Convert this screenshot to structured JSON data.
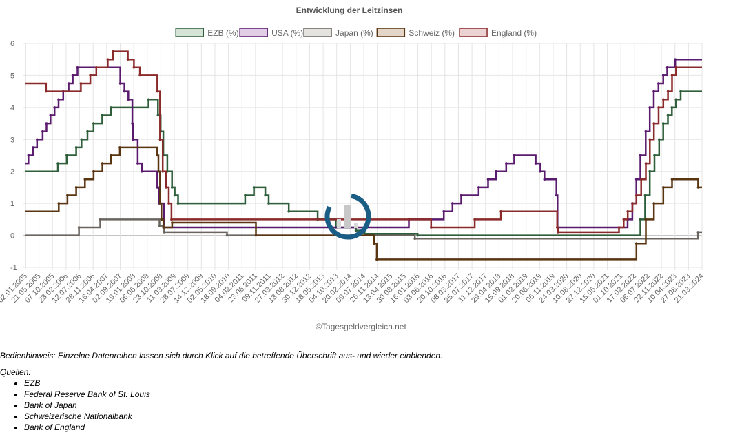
{
  "chart_data": {
    "type": "line",
    "step": true,
    "title": "Entwicklung der Leitzinsen",
    "credit": "©Tagesgeldvergleich.net",
    "ylim": [
      -1,
      6
    ],
    "y_ticks": [
      "-1",
      "0",
      "1",
      "2",
      "3",
      "4",
      "5",
      "6"
    ],
    "x_range": [
      "2005-01-02",
      "2024-04-30"
    ],
    "grid": true,
    "legend_position": "top-center",
    "x_tick_labels": [
      "02.01.2005",
      "21.05.2005",
      "07.10.2005",
      "23.02.2006",
      "12.07.2006",
      "28.11.2006",
      "16.04.2007",
      "02.09.2007",
      "19.01.2008",
      "06.06.2008",
      "23.10.2008",
      "11.03.2009",
      "28.07.2009",
      "14.12.2009",
      "02.05.2010",
      "18.09.2010",
      "04.02.2011",
      "23.06.2011",
      "09.11.2011",
      "27.03.2012",
      "13.08.2012",
      "30.12.2012",
      "18.05.2013",
      "04.10.2013",
      "20.02.2014",
      "09.07.2014",
      "25.11.2014",
      "13.04.2015",
      "30.08.2015",
      "16.01.2016",
      "03.06.2016",
      "20.10.2016",
      "08.03.2017",
      "25.07.2017",
      "11.12.2017",
      "29.04.2018",
      "15.09.2018",
      "01.02.2019",
      "20.06.2019",
      "06.11.2019",
      "24.03.2020",
      "10.08.2020",
      "27.12.2020",
      "15.05.2021",
      "01.10.2021",
      "17.02.2022",
      "06.07.2022",
      "22.11.2022",
      "10.04.2023",
      "27.08.2023",
      "21.03.2024"
    ],
    "series": [
      {
        "name": "EZB (%)",
        "color": "#2e5e3a",
        "fill": "#d4e3d6",
        "points": [
          [
            "2005-01-02",
            2.0
          ],
          [
            "2005-12-06",
            2.25
          ],
          [
            "2006-03-08",
            2.5
          ],
          [
            "2006-06-15",
            2.75
          ],
          [
            "2006-08-09",
            3.0
          ],
          [
            "2006-10-11",
            3.25
          ],
          [
            "2006-12-13",
            3.5
          ],
          [
            "2007-03-14",
            3.75
          ],
          [
            "2007-06-13",
            4.0
          ],
          [
            "2008-07-09",
            4.25
          ],
          [
            "2008-10-15",
            3.75
          ],
          [
            "2008-11-12",
            3.25
          ],
          [
            "2008-12-10",
            2.5
          ],
          [
            "2009-01-21",
            2.0
          ],
          [
            "2009-03-11",
            1.5
          ],
          [
            "2009-04-08",
            1.25
          ],
          [
            "2009-05-13",
            1.0
          ],
          [
            "2011-04-13",
            1.25
          ],
          [
            "2011-07-13",
            1.5
          ],
          [
            "2011-11-09",
            1.25
          ],
          [
            "2011-12-14",
            1.0
          ],
          [
            "2012-07-11",
            0.75
          ],
          [
            "2013-05-08",
            0.5
          ],
          [
            "2013-11-13",
            0.25
          ],
          [
            "2014-06-11",
            0.15
          ],
          [
            "2014-09-10",
            0.05
          ],
          [
            "2016-03-16",
            0.0
          ],
          [
            "2022-07-27",
            0.5
          ],
          [
            "2022-09-14",
            1.25
          ],
          [
            "2022-11-02",
            2.0
          ],
          [
            "2022-12-21",
            2.5
          ],
          [
            "2023-02-08",
            3.0
          ],
          [
            "2023-03-22",
            3.5
          ],
          [
            "2023-05-10",
            3.75
          ],
          [
            "2023-06-21",
            4.0
          ],
          [
            "2023-08-02",
            4.25
          ],
          [
            "2023-09-20",
            4.5
          ],
          [
            "2024-04-30",
            4.5
          ]
        ]
      },
      {
        "name": "USA (%)",
        "color": "#5a1a6e",
        "fill": "#e1cde6",
        "points": [
          [
            "2005-01-02",
            2.25
          ],
          [
            "2005-02-02",
            2.5
          ],
          [
            "2005-03-22",
            2.75
          ],
          [
            "2005-05-03",
            3.0
          ],
          [
            "2005-06-30",
            3.25
          ],
          [
            "2005-08-09",
            3.5
          ],
          [
            "2005-09-20",
            3.75
          ],
          [
            "2005-11-01",
            4.0
          ],
          [
            "2005-12-13",
            4.25
          ],
          [
            "2006-01-31",
            4.5
          ],
          [
            "2006-03-28",
            4.75
          ],
          [
            "2006-05-10",
            5.0
          ],
          [
            "2006-06-29",
            5.25
          ],
          [
            "2007-09-18",
            4.75
          ],
          [
            "2007-10-31",
            4.5
          ],
          [
            "2007-12-11",
            4.25
          ],
          [
            "2008-01-22",
            3.5
          ],
          [
            "2008-01-30",
            3.0
          ],
          [
            "2008-03-18",
            2.25
          ],
          [
            "2008-04-30",
            2.0
          ],
          [
            "2008-10-08",
            1.5
          ],
          [
            "2008-10-29",
            1.0
          ],
          [
            "2008-12-16",
            0.25
          ],
          [
            "2015-12-16",
            0.5
          ],
          [
            "2016-12-14",
            0.75
          ],
          [
            "2017-03-15",
            1.0
          ],
          [
            "2017-06-14",
            1.25
          ],
          [
            "2017-12-13",
            1.5
          ],
          [
            "2018-03-21",
            1.75
          ],
          [
            "2018-06-13",
            2.0
          ],
          [
            "2018-09-26",
            2.25
          ],
          [
            "2018-12-19",
            2.5
          ],
          [
            "2019-07-31",
            2.25
          ],
          [
            "2019-09-18",
            2.0
          ],
          [
            "2019-10-30",
            1.75
          ],
          [
            "2020-03-03",
            1.25
          ],
          [
            "2020-03-15",
            0.25
          ],
          [
            "2022-03-16",
            0.5
          ],
          [
            "2022-05-04",
            1.0
          ],
          [
            "2022-06-15",
            1.75
          ],
          [
            "2022-07-27",
            2.5
          ],
          [
            "2022-09-21",
            3.25
          ],
          [
            "2022-11-02",
            4.0
          ],
          [
            "2022-12-14",
            4.5
          ],
          [
            "2023-02-01",
            4.75
          ],
          [
            "2023-03-22",
            5.0
          ],
          [
            "2023-05-03",
            5.25
          ],
          [
            "2023-07-26",
            5.5
          ],
          [
            "2024-04-30",
            5.5
          ]
        ]
      },
      {
        "name": "Japan (%)",
        "color": "#6b6560",
        "fill": "#e5e3e0",
        "points": [
          [
            "2005-01-02",
            0.0
          ],
          [
            "2006-07-14",
            0.25
          ],
          [
            "2007-02-21",
            0.5
          ],
          [
            "2008-10-31",
            0.3
          ],
          [
            "2008-12-19",
            0.1
          ],
          [
            "2010-10-05",
            0.0
          ],
          [
            "2016-02-16",
            -0.1
          ],
          [
            "2024-03-19",
            0.1
          ],
          [
            "2024-04-30",
            0.1
          ]
        ]
      },
      {
        "name": "Schweiz (%)",
        "color": "#5a3512",
        "fill": "#e3d6c8",
        "points": [
          [
            "2005-01-02",
            0.75
          ],
          [
            "2005-12-15",
            1.0
          ],
          [
            "2006-03-16",
            1.25
          ],
          [
            "2006-06-15",
            1.5
          ],
          [
            "2006-09-14",
            1.75
          ],
          [
            "2006-12-14",
            2.0
          ],
          [
            "2007-03-15",
            2.25
          ],
          [
            "2007-06-14",
            2.5
          ],
          [
            "2007-09-13",
            2.75
          ],
          [
            "2008-10-08",
            2.5
          ],
          [
            "2008-10-20",
            2.0
          ],
          [
            "2008-11-06",
            1.0
          ],
          [
            "2008-11-20",
            0.5
          ],
          [
            "2008-12-11",
            0.25
          ],
          [
            "2009-03-12",
            0.4
          ],
          [
            "2011-08-03",
            0.0
          ],
          [
            "2014-12-18",
            -0.25
          ],
          [
            "2015-01-15",
            -0.75
          ],
          [
            "2022-06-16",
            -0.25
          ],
          [
            "2022-09-22",
            0.5
          ],
          [
            "2022-12-15",
            1.0
          ],
          [
            "2023-03-23",
            1.5
          ],
          [
            "2023-06-22",
            1.75
          ],
          [
            "2024-03-21",
            1.5
          ],
          [
            "2024-04-30",
            1.5
          ]
        ]
      },
      {
        "name": "England (%)",
        "color": "#8b2a2a",
        "fill": "#ecd3d3",
        "points": [
          [
            "2005-01-02",
            4.75
          ],
          [
            "2005-08-04",
            4.5
          ],
          [
            "2006-08-03",
            4.75
          ],
          [
            "2006-11-09",
            5.0
          ],
          [
            "2007-01-11",
            5.25
          ],
          [
            "2007-05-10",
            5.5
          ],
          [
            "2007-07-05",
            5.75
          ],
          [
            "2007-12-06",
            5.5
          ],
          [
            "2008-02-07",
            5.25
          ],
          [
            "2008-04-10",
            5.0
          ],
          [
            "2008-10-08",
            4.5
          ],
          [
            "2008-11-06",
            3.0
          ],
          [
            "2008-12-04",
            2.0
          ],
          [
            "2009-01-08",
            1.5
          ],
          [
            "2009-02-05",
            1.0
          ],
          [
            "2009-03-05",
            0.5
          ],
          [
            "2016-08-04",
            0.25
          ],
          [
            "2017-11-02",
            0.5
          ],
          [
            "2018-08-02",
            0.75
          ],
          [
            "2020-03-11",
            0.25
          ],
          [
            "2020-03-19",
            0.1
          ],
          [
            "2021-12-16",
            0.25
          ],
          [
            "2022-02-03",
            0.5
          ],
          [
            "2022-03-17",
            0.75
          ],
          [
            "2022-05-05",
            1.0
          ],
          [
            "2022-06-16",
            1.25
          ],
          [
            "2022-08-04",
            1.75
          ],
          [
            "2022-09-22",
            2.25
          ],
          [
            "2022-11-03",
            3.0
          ],
          [
            "2022-12-15",
            3.5
          ],
          [
            "2023-02-02",
            4.0
          ],
          [
            "2023-03-23",
            4.25
          ],
          [
            "2023-05-11",
            4.5
          ],
          [
            "2023-06-22",
            5.0
          ],
          [
            "2023-08-03",
            5.25
          ],
          [
            "2024-04-30",
            5.25
          ]
        ]
      }
    ]
  },
  "notes": {
    "hint": "Bedienhinweis: Einzelne Datenreihen lassen sich durch Klick auf die betreffende Überschrift aus- und wieder einblenden.",
    "sources_heading": "Quellen:",
    "sources": [
      "EZB",
      "Federal Reserve Bank of St. Louis",
      "Bank of Japan",
      "Schweizerische Nationalbank",
      "Bank of England"
    ]
  }
}
